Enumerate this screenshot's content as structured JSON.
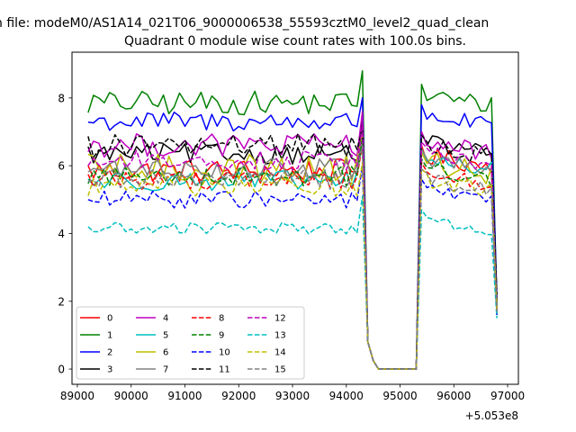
{
  "chart_data": {
    "type": "line",
    "suptitle": "n file: modeM0/AS1A14_021T06_9000006538_55593cztM0_level2_quad_clean",
    "title": "Quadrant 0 module wise count rates with 100.0s bins.",
    "xlabel": "",
    "ylabel": "",
    "x_offset_label": "+5.053e8",
    "xlim": [
      88900,
      97200
    ],
    "ylim": [
      -0.45,
      9.35
    ],
    "xticks": [
      89000,
      90000,
      91000,
      92000,
      93000,
      94000,
      95000,
      96000,
      97000
    ],
    "yticks": [
      0,
      2,
      4,
      6,
      8
    ],
    "grid": false,
    "legend_position": "lower-left",
    "segments": [
      {
        "x_start": 89200,
        "x_end": 94200,
        "count": 51
      },
      {
        "x_start": 94300,
        "x_end": 94300,
        "count": 1
      },
      {
        "x_start": 94400,
        "x_end": 95300,
        "count": 10
      },
      {
        "x_start": 95400,
        "x_end": 96800,
        "count": 15
      }
    ],
    "dip_values": [
      0.8,
      0.25,
      0,
      0,
      0,
      0,
      0,
      0,
      0,
      0
    ],
    "series": [
      {
        "name": "0",
        "color": "#ff0000",
        "dash": "solid",
        "base": 5.85,
        "amp": 0.35,
        "peak": 6.9,
        "post": 6.3,
        "end": 1.7
      },
      {
        "name": "1",
        "color": "#008000",
        "dash": "solid",
        "base": 7.85,
        "amp": 0.35,
        "peak": 8.8,
        "post": 8.1,
        "end": 1.9
      },
      {
        "name": "2",
        "color": "#0000ff",
        "dash": "solid",
        "base": 7.3,
        "amp": 0.3,
        "peak": 8.0,
        "post": 7.5,
        "end": 2.1
      },
      {
        "name": "3",
        "color": "#000000",
        "dash": "solid",
        "base": 6.35,
        "amp": 0.3,
        "peak": 7.3,
        "post": 6.7,
        "end": 2.0
      },
      {
        "name": "4",
        "color": "#bf00bf",
        "dash": "solid",
        "base": 6.6,
        "amp": 0.35,
        "peak": 7.6,
        "post": 6.7,
        "end": 1.6
      },
      {
        "name": "5",
        "color": "#00bfbf",
        "dash": "solid",
        "base": 5.55,
        "amp": 0.3,
        "peak": 6.6,
        "post": 6.2,
        "end": 1.6
      },
      {
        "name": "6",
        "color": "#bfbf00",
        "dash": "solid",
        "base": 5.9,
        "amp": 0.45,
        "peak": 6.9,
        "post": 6.1,
        "end": 1.7
      },
      {
        "name": "7",
        "color": "#808080",
        "dash": "solid",
        "base": 5.9,
        "amp": 0.3,
        "peak": 6.8,
        "post": 6.2,
        "end": 1.8
      },
      {
        "name": "8",
        "color": "#ff0000",
        "dash": "dashed",
        "base": 5.6,
        "amp": 0.3,
        "peak": 6.6,
        "post": 5.8,
        "end": 1.7
      },
      {
        "name": "9",
        "color": "#008000",
        "dash": "dashed",
        "base": 5.7,
        "amp": 0.3,
        "peak": 6.8,
        "post": 5.9,
        "end": 1.8
      },
      {
        "name": "10",
        "color": "#0000ff",
        "dash": "dashed",
        "base": 5.0,
        "amp": 0.25,
        "peak": 6.0,
        "post": 5.3,
        "end": 1.6
      },
      {
        "name": "11",
        "color": "#000000",
        "dash": "dashed",
        "base": 6.6,
        "amp": 0.35,
        "peak": 7.1,
        "post": 6.6,
        "end": 2.2
      },
      {
        "name": "12",
        "color": "#bf00bf",
        "dash": "dashed",
        "base": 6.15,
        "amp": 0.3,
        "peak": 7.2,
        "post": 6.4,
        "end": 1.7
      },
      {
        "name": "13",
        "color": "#00bfbf",
        "dash": "dashed",
        "base": 4.15,
        "amp": 0.18,
        "peak": 5.1,
        "post": 4.4,
        "end": 1.5
      },
      {
        "name": "14",
        "color": "#bfbf00",
        "dash": "dashed",
        "base": 5.4,
        "amp": 0.3,
        "peak": 6.1,
        "post": 5.6,
        "end": 1.7
      },
      {
        "name": "15",
        "color": "#808080",
        "dash": "dashed",
        "base": 5.6,
        "amp": 0.3,
        "peak": 6.6,
        "post": 5.6,
        "end": 1.7
      }
    ]
  }
}
